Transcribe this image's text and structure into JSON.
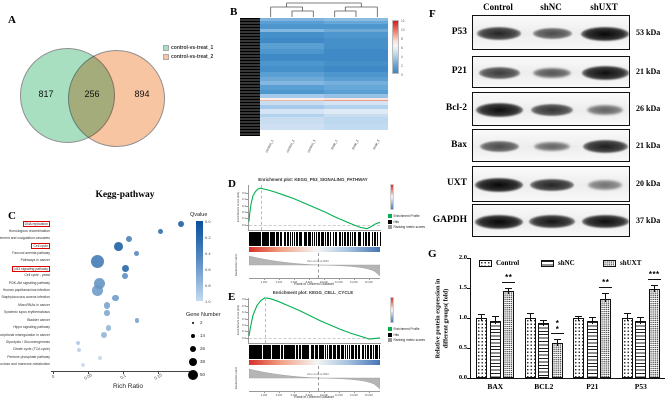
{
  "panel_labels": {
    "a": "A",
    "b": "B",
    "c": "C",
    "d": "D",
    "e": "E",
    "f": "F",
    "g": "G"
  },
  "chart_data": [
    {
      "id": "venn_degs",
      "type": "venn",
      "sets": [
        {
          "label": "control-vs-treat_1",
          "color": "#a9dfc1",
          "unique": 817
        },
        {
          "label": "control-vs-treat_2",
          "color": "#f7c5a2",
          "unique": 894
        }
      ],
      "overlap": 256
    },
    {
      "id": "expression_heatmap",
      "type": "heatmap",
      "col_labels": [
        "control_1",
        "control_2",
        "control_3",
        "treat_1",
        "treat_2",
        "treat_3"
      ],
      "colorbar_ticks": [
        "12",
        "10",
        "8",
        "6",
        "4",
        "2",
        "0"
      ],
      "row_bands": [
        {
          "h": 2.5,
          "l": "#7fb3de",
          "r": "#8abce2"
        },
        {
          "h": 3,
          "l": "#599fd3",
          "r": "#66a8d8"
        },
        {
          "h": 4,
          "l": "#4e97ce",
          "r": "#4e97ce"
        },
        {
          "h": 2.5,
          "l": "#84b8e0",
          "r": "#6ea9d8"
        },
        {
          "h": 5,
          "l": "#4690ca",
          "r": "#4e97ce"
        },
        {
          "h": 4,
          "l": "#3f8ac6",
          "r": "#4690ca"
        },
        {
          "h": 5,
          "l": "#5b9fd3",
          "r": "#4690ca"
        },
        {
          "h": 4.5,
          "l": "#4e97ce",
          "r": "#3f8ac6"
        },
        {
          "h": 6,
          "l": "#3f8ac6",
          "r": "#3f8ac6"
        },
        {
          "h": 4,
          "l": "#4e97ce",
          "r": "#4690ca"
        },
        {
          "h": 5,
          "l": "#4690ca",
          "r": "#3f8ac6"
        },
        {
          "h": 4.5,
          "l": "#599fd3",
          "r": "#4e97ce"
        },
        {
          "h": 3.5,
          "l": "#6ea9d8",
          "r": "#599fd3"
        },
        {
          "h": 3,
          "l": "#84b8e0",
          "r": "#76afdc"
        },
        {
          "h": 4.5,
          "l": "#599fd3",
          "r": "#66a8d8"
        },
        {
          "h": 3.5,
          "l": "#4e97ce",
          "r": "#599fd3"
        },
        {
          "h": 3,
          "l": "#a4c9ea",
          "r": "#96c1e6"
        },
        {
          "h": 1.6,
          "l": "#fdf0ec",
          "r": "#fde4dc"
        },
        {
          "h": 1.4,
          "l": "#f0b7a4",
          "r": "#ec9d85"
        },
        {
          "h": 3.5,
          "l": "#c9ddf1",
          "r": "#d4e4f4"
        },
        {
          "h": 3.5,
          "l": "#a4c9ea",
          "r": "#b3d2ee"
        },
        {
          "h": 3.5,
          "l": "#d4e4f4",
          "r": "#dfeaf7"
        },
        {
          "h": 3,
          "l": "#b3d2ee",
          "r": "#c9ddf1"
        },
        {
          "h": 5.5,
          "l": "#c9ddf1",
          "r": "#bdd7ef"
        },
        {
          "h": 5.5,
          "l": "#cfe0f3",
          "r": "#c3dbf0"
        }
      ]
    },
    {
      "id": "kegg_enrichment",
      "type": "scatter",
      "title": "Kegg-pathway",
      "xlabel": "Rich Ratio",
      "x_ticks": [
        "0",
        "0.05",
        "0.1",
        "0.15",
        "0.2"
      ],
      "x_range": [
        0,
        0.25
      ],
      "qvalue_legend": {
        "title": "Qvalue",
        "ticks": [
          "0.0",
          "0.2",
          "0.4",
          "0.6",
          "0.8",
          "1.0"
        ],
        "color_low": "#08519c",
        "color_high": "#c6dbef"
      },
      "size_legend": {
        "title": "Gene Number",
        "sizes": [
          2,
          14,
          26,
          38,
          50
        ]
      },
      "highlighted": [
        "DNA replication",
        "Cell cycle",
        "p53 signaling pathway"
      ],
      "pathways": [
        {
          "name": "DNA replication",
          "rich_ratio": 0.183,
          "genes": 14,
          "qvalue": 0.05,
          "boxed": true
        },
        {
          "name": "Homologous recombination",
          "rich_ratio": 0.154,
          "genes": 10,
          "qvalue": 0.15,
          "boxed": false
        },
        {
          "name": "Complement and coagulation cascades",
          "rich_ratio": 0.109,
          "genes": 14,
          "qvalue": 0.3,
          "boxed": false
        },
        {
          "name": "Cell cycle",
          "rich_ratio": 0.093,
          "genes": 26,
          "qvalue": 0.05,
          "boxed": true
        },
        {
          "name": "Fanconi anemia pathway",
          "rich_ratio": 0.119,
          "genes": 12,
          "qvalue": 0.35,
          "boxed": false
        },
        {
          "name": "Pathways in cancer",
          "rich_ratio": 0.064,
          "genes": 44,
          "qvalue": 0.25,
          "boxed": false
        },
        {
          "name": "p53 signaling pathway",
          "rich_ratio": 0.104,
          "genes": 18,
          "qvalue": 0.1,
          "boxed": true
        },
        {
          "name": "Cell cycle - yeast",
          "rich_ratio": 0.103,
          "genes": 14,
          "qvalue": 0.4,
          "boxed": false
        },
        {
          "name": "PI3K-Akt signaling pathway",
          "rich_ratio": 0.066,
          "genes": 36,
          "qvalue": 0.45,
          "boxed": false
        },
        {
          "name": "Human papillomavirus infection",
          "rich_ratio": 0.064,
          "genes": 34,
          "qvalue": 0.5,
          "boxed": false
        },
        {
          "name": "Staphylococcus aureus infection",
          "rich_ratio": 0.089,
          "genes": 16,
          "qvalue": 0.5,
          "boxed": false
        },
        {
          "name": "MicroRNAs in cancer",
          "rich_ratio": 0.077,
          "genes": 16,
          "qvalue": 0.55,
          "boxed": false
        },
        {
          "name": "Systemic lupus erythematosus",
          "rich_ratio": 0.077,
          "genes": 12,
          "qvalue": 0.6,
          "boxed": false
        },
        {
          "name": "Bladder cancer",
          "rich_ratio": 0.12,
          "genes": 8,
          "qvalue": 0.55,
          "boxed": false
        },
        {
          "name": "Hippo signaling pathway",
          "rich_ratio": 0.079,
          "genes": 12,
          "qvalue": 0.7,
          "boxed": false
        },
        {
          "name": "Transcriptional misregulation in cancer",
          "rich_ratio": 0.073,
          "genes": 14,
          "qvalue": 0.7,
          "boxed": false
        },
        {
          "name": "Glycolysis / Gluconeogenesis",
          "rich_ratio": 0.036,
          "genes": 8,
          "qvalue": 0.85,
          "boxed": false
        },
        {
          "name": "Citrate cycle (TCA cycle)",
          "rich_ratio": 0.037,
          "genes": 6,
          "qvalue": 0.9,
          "boxed": false
        },
        {
          "name": "Pentose phosphate pathway",
          "rich_ratio": 0.067,
          "genes": 6,
          "qvalue": 0.95,
          "boxed": false
        },
        {
          "name": "Fructose and mannose metabolism",
          "rich_ratio": 0.043,
          "genes": 6,
          "qvalue": 1.0,
          "boxed": false
        }
      ]
    },
    {
      "id": "gsea_p53",
      "type": "line",
      "title": "Enrichment plot: KEGG_P53_SIGNALING_PATHWAY",
      "ylabel": "Enrichment score (ES)",
      "ylabel2": "Ranked list metric",
      "xlabel": "Rank in Ordered Dataset",
      "y_ticks": [
        "0.5",
        "0.4",
        "0.3",
        "0.2",
        "0.1",
        "0.0"
      ],
      "x_ticks": [
        "2,000",
        "4,000",
        "6,000",
        "8,000",
        "10,000",
        "12,000",
        "14,000",
        "16,000"
      ],
      "zero_cross_label": "Zero cross at 9046",
      "legend": [
        "Enrichment Profile",
        "Hits",
        "Ranking metric scores"
      ],
      "hits_count": 90,
      "es_curve": [
        [
          0,
          0.05
        ],
        [
          0.005,
          0.18
        ],
        [
          0.015,
          0.32
        ],
        [
          0.03,
          0.45
        ],
        [
          0.05,
          0.52
        ],
        [
          0.07,
          0.56
        ],
        [
          0.09,
          0.57
        ],
        [
          0.11,
          0.56
        ],
        [
          0.15,
          0.54
        ],
        [
          0.2,
          0.51
        ],
        [
          0.27,
          0.46
        ],
        [
          0.34,
          0.41
        ],
        [
          0.42,
          0.34
        ],
        [
          0.5,
          0.27
        ],
        [
          0.58,
          0.2
        ],
        [
          0.66,
          0.12
        ],
        [
          0.74,
          0.05
        ],
        [
          0.8,
          0.0
        ],
        [
          0.85,
          -0.04
        ],
        [
          0.9,
          -0.06
        ],
        [
          0.93,
          -0.03
        ],
        [
          0.96,
          0.01
        ],
        [
          1.0,
          0.04
        ]
      ]
    },
    {
      "id": "gsea_cell_cycle",
      "type": "line",
      "title": "Enrichment plot: KEGG_CELL_CYCLE",
      "ylabel": "Enrichment score (ES)",
      "ylabel2": "Ranked list metric",
      "xlabel": "Rank in Ordered Dataset",
      "y_ticks": [
        "0.6",
        "0.5",
        "0.4",
        "0.3",
        "0.2",
        "0.1",
        "0.0"
      ],
      "x_ticks": [
        "2,000",
        "4,000",
        "6,000",
        "8,000",
        "10,000",
        "12,000",
        "14,000",
        "16,000"
      ],
      "zero_cross_label": "Zero cross at 9046",
      "legend": [
        "Enrichment Profile",
        "Hits",
        "Ranking metric scores"
      ],
      "hits_count": 115,
      "es_curve": [
        [
          0,
          0.03
        ],
        [
          0.01,
          0.15
        ],
        [
          0.03,
          0.35
        ],
        [
          0.06,
          0.5
        ],
        [
          0.09,
          0.58
        ],
        [
          0.12,
          0.62
        ],
        [
          0.16,
          0.61
        ],
        [
          0.22,
          0.57
        ],
        [
          0.3,
          0.5
        ],
        [
          0.38,
          0.43
        ],
        [
          0.46,
          0.35
        ],
        [
          0.54,
          0.27
        ],
        [
          0.62,
          0.2
        ],
        [
          0.7,
          0.13
        ],
        [
          0.78,
          0.07
        ],
        [
          0.86,
          0.02
        ],
        [
          0.92,
          -0.02
        ],
        [
          1.0,
          0.0
        ]
      ]
    },
    {
      "id": "western_blot",
      "type": "table",
      "lanes": [
        "Control",
        "shNC",
        "shUXT"
      ],
      "rows": [
        {
          "protein": "P53",
          "kda": "53 kDa",
          "intensity": [
            0.8,
            0.55,
            1.0
          ]
        },
        {
          "protein": "P21",
          "kda": "21 kDa",
          "intensity": [
            0.65,
            0.5,
            0.95
          ]
        },
        {
          "protein": "Bcl-2",
          "kda": "26 kDa",
          "intensity": [
            0.95,
            0.7,
            0.4
          ]
        },
        {
          "protein": "Bax",
          "kda": "21 kDa",
          "intensity": [
            0.55,
            0.4,
            0.85
          ]
        },
        {
          "protein": "UXT",
          "kda": "20 kDa",
          "intensity": [
            1.0,
            0.8,
            0.3
          ]
        },
        {
          "protein": "GAPDH",
          "kda": "37 kDa",
          "intensity": [
            1.0,
            0.9,
            0.95
          ]
        }
      ]
    },
    {
      "id": "protein_expression_bars",
      "type": "bar",
      "ylabel_line1": "Relative protein expression in",
      "ylabel_line2": "different groups( fold)",
      "categories": [
        "BAX",
        "BCL2",
        "P21",
        "P53"
      ],
      "y_ticks": [
        "2.0",
        "1.5",
        "1.0",
        "0.5",
        "0.0"
      ],
      "ylim": [
        0,
        2
      ],
      "series": [
        {
          "name": "Control",
          "pattern": "dots",
          "values": [
            1.0,
            1.0,
            1.0,
            1.0
          ],
          "errors": [
            0.06,
            0.09,
            0.04,
            0.08
          ]
        },
        {
          "name": "shNC",
          "pattern": "hlines",
          "values": [
            0.95,
            0.91,
            0.95,
            0.95
          ],
          "errors": [
            0.08,
            0.05,
            0.06,
            0.06
          ]
        },
        {
          "name": "shUXT",
          "pattern": "fine-dots",
          "values": [
            1.45,
            0.59,
            1.32,
            1.49
          ],
          "errors": [
            0.05,
            0.06,
            0.1,
            0.06
          ]
        }
      ],
      "significance": [
        {
          "cat": "BAX",
          "label": "**",
          "stacked": false
        },
        {
          "cat": "BCL2",
          "label": "**",
          "stacked": true
        },
        {
          "cat": "P21",
          "label": "**",
          "stacked": false
        },
        {
          "cat": "P53",
          "label": "***",
          "stacked": false
        }
      ]
    }
  ]
}
